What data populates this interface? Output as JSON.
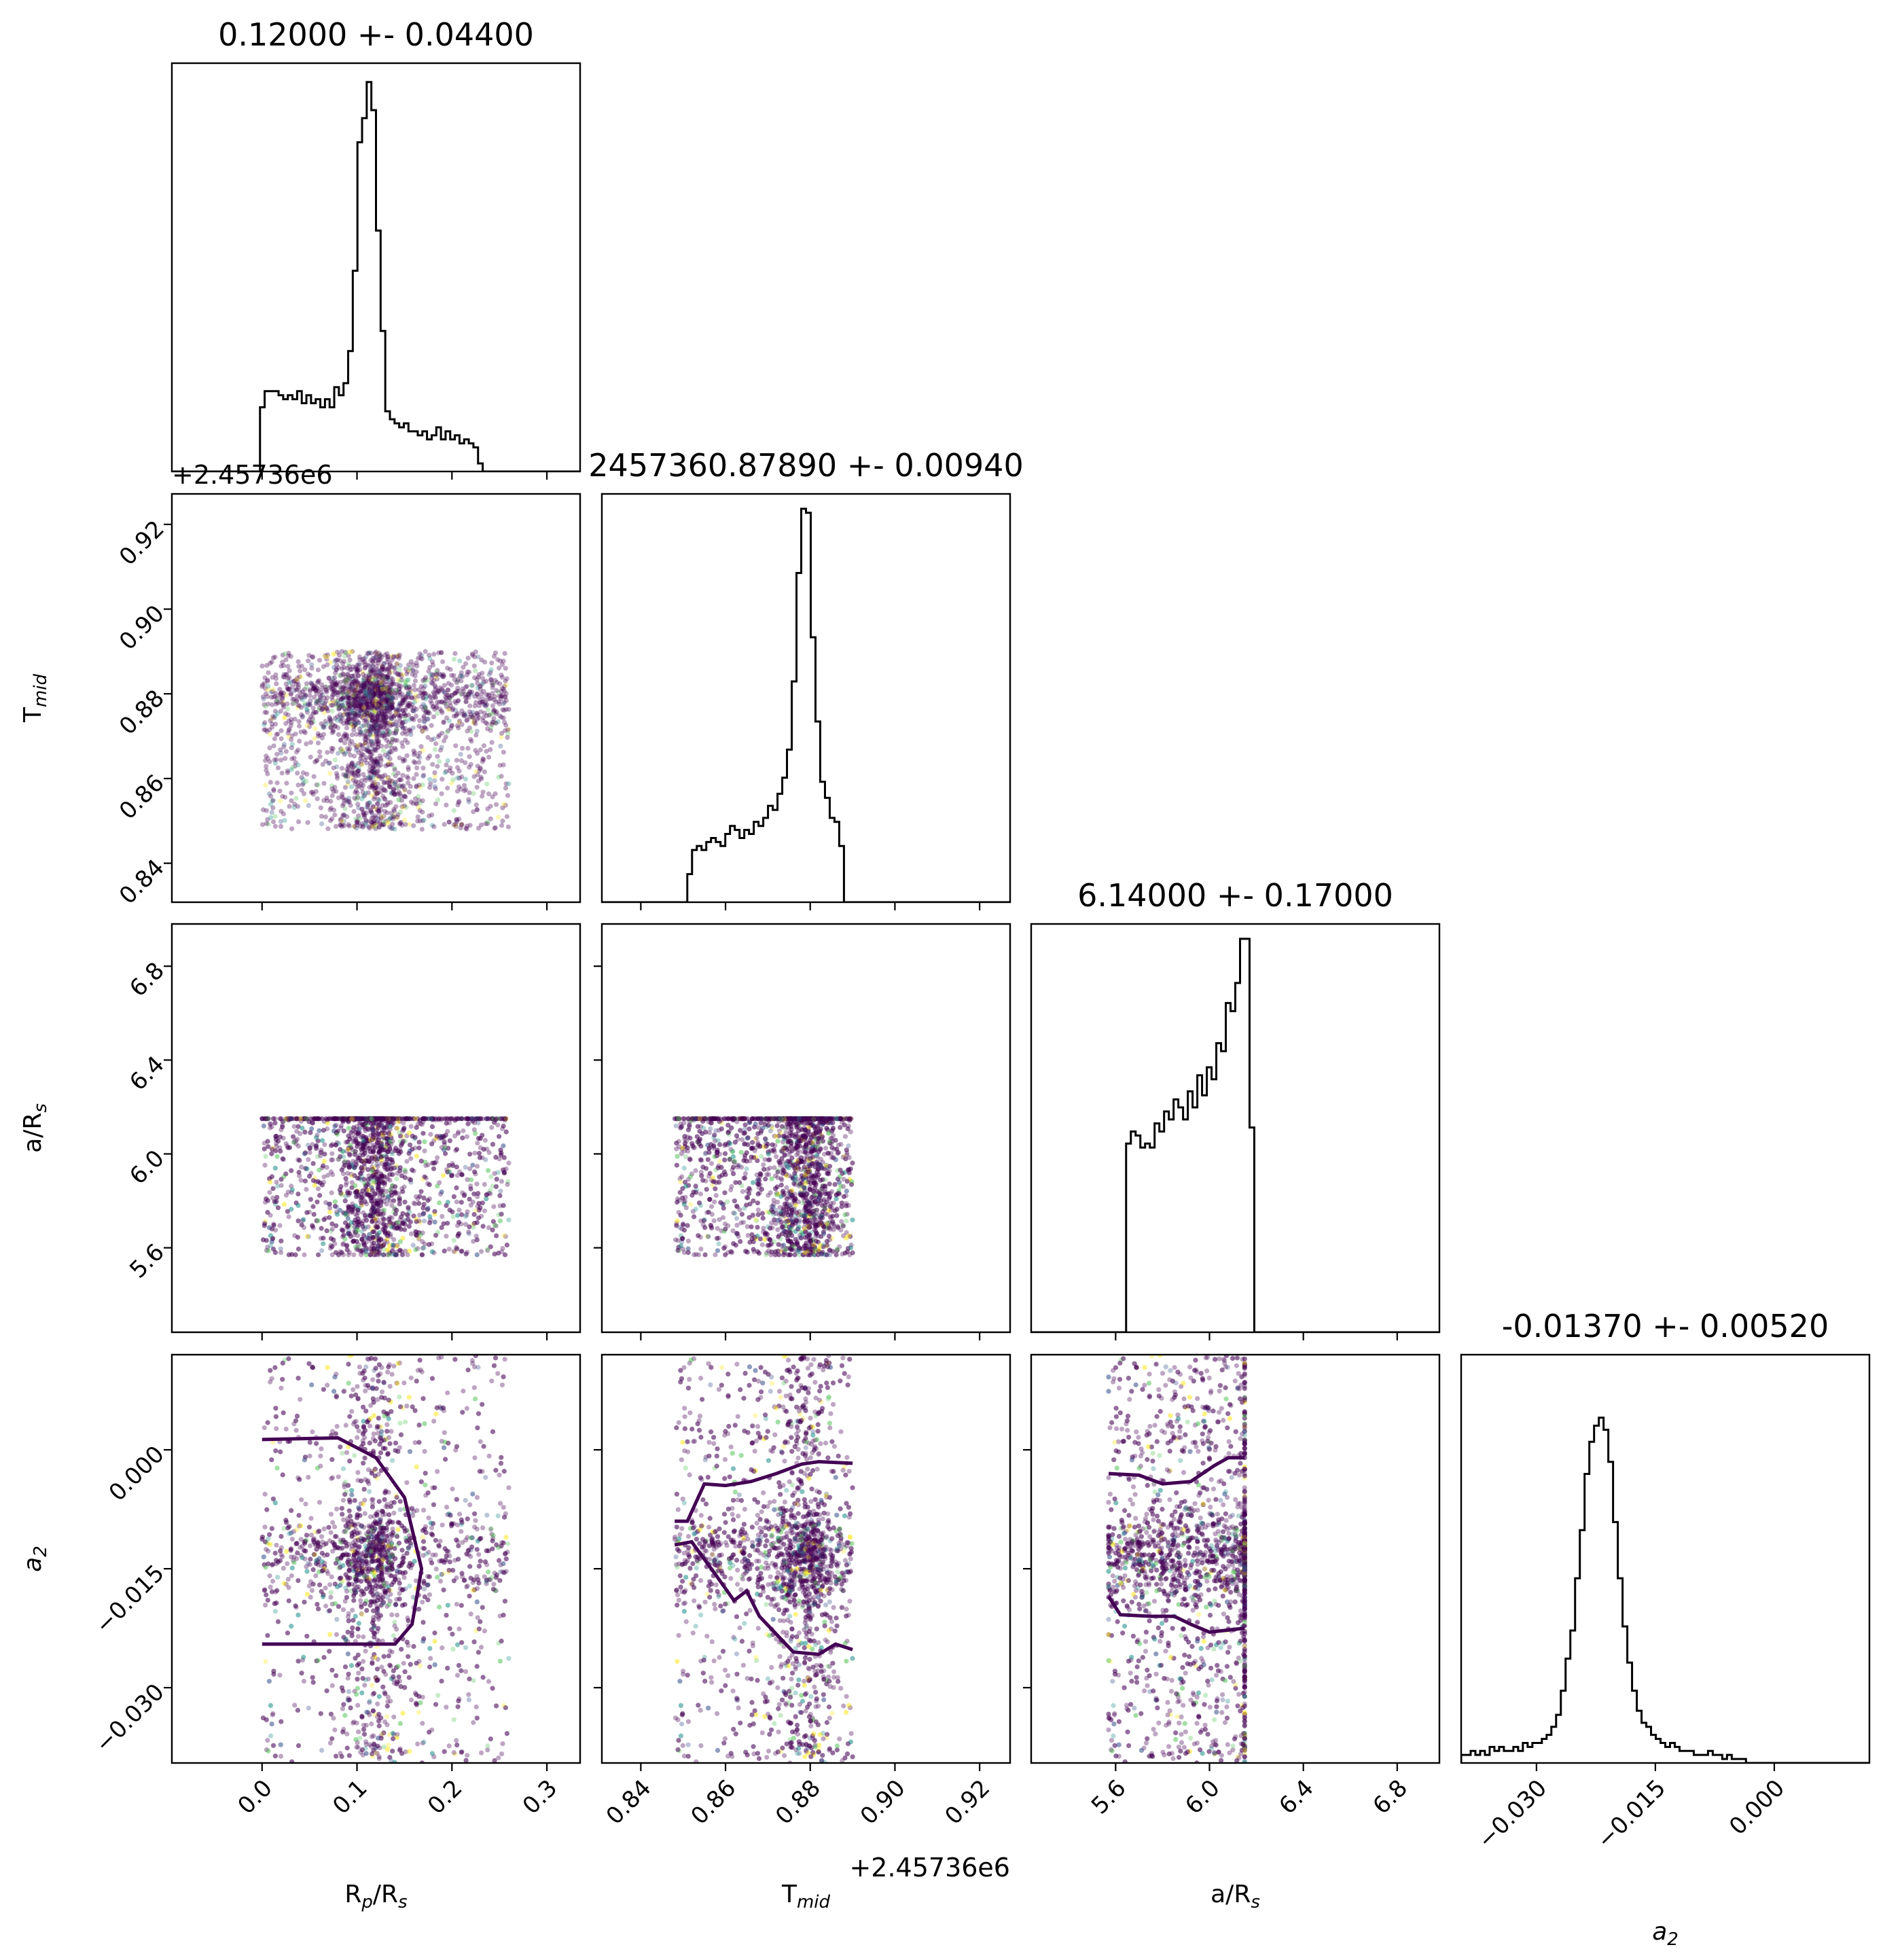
{
  "chart_data": {
    "type": "corner",
    "parameters": [
      {
        "key": "rp",
        "label": "R",
        "label_sub": "p",
        "label_rest": "/R",
        "label_rest_sub": "s",
        "title": "0.12000 +- 0.04400",
        "range": [
          -0.095,
          0.335
        ],
        "ticks": [
          "0.0",
          "0.1",
          "0.2",
          "0.3"
        ],
        "tick_values": [
          0.0,
          0.1,
          0.2,
          0.3
        ],
        "sample_range": [
          0.0,
          0.26
        ],
        "peak": 0.115,
        "width": 0.02
      },
      {
        "key": "tmid",
        "label": "T",
        "label_sub": "mid",
        "title": "2457360.87890 +- 0.00940",
        "range": [
          0.8308,
          0.9272
        ],
        "ticks": [
          "0.84",
          "0.86",
          "0.88",
          "0.90",
          "0.92"
        ],
        "tick_values": [
          0.84,
          0.86,
          0.88,
          0.9,
          0.92
        ],
        "offset_label": "+2.45736e6",
        "sample_range": [
          0.848,
          0.89
        ],
        "peak": 0.8785,
        "width": 0.004
      },
      {
        "key": "ars",
        "label": "a/R",
        "label_sub": "s",
        "title": "6.14000 +- 0.17000",
        "range": [
          5.24,
          6.98
        ],
        "ticks": [
          "5.6",
          "6.0",
          "6.4",
          "6.8"
        ],
        "tick_values": [
          5.6,
          6.0,
          6.4,
          6.8
        ],
        "sample_range": [
          5.57,
          6.15
        ],
        "peak": 6.1,
        "width": 0.3
      },
      {
        "key": "a2",
        "label": "a",
        "label_sub": "2",
        "title": "-0.01370 +- 0.00520",
        "range": [
          -0.0395,
          0.012
        ],
        "ticks": [
          "−0.030",
          "−0.015",
          "0.000"
        ],
        "tick_values": [
          -0.03,
          -0.015,
          0.0
        ],
        "sample_range": [
          -0.0395,
          0.012
        ],
        "peak": -0.0137,
        "width": 0.003
      }
    ],
    "histograms": {
      "rp": [
        0,
        0,
        0,
        0,
        0,
        0,
        0,
        0,
        0,
        0,
        0,
        0,
        0,
        0,
        0,
        0,
        0,
        0,
        0,
        0.16,
        0.2,
        0.2,
        0.2,
        0.19,
        0.18,
        0.19,
        0.18,
        0.2,
        0.17,
        0.19,
        0.17,
        0.18,
        0.16,
        0.18,
        0.16,
        0.21,
        0.19,
        0.22,
        0.3,
        0.5,
        0.82,
        0.88,
        0.97,
        0.9,
        0.6,
        0.35,
        0.15,
        0.13,
        0.12,
        0.11,
        0.12,
        0.1,
        0.1,
        0.09,
        0.1,
        0.08,
        0.09,
        0.11,
        0.08,
        0.1,
        0.08,
        0.09,
        0.07,
        0.08,
        0.07,
        0.06,
        0.02,
        0,
        0,
        0,
        0,
        0,
        0,
        0,
        0,
        0,
        0,
        0,
        0,
        0,
        0,
        0,
        0,
        0,
        0,
        0,
        0,
        0
      ],
      "tmid": [
        0,
        0,
        0,
        0,
        0,
        0,
        0,
        0,
        0,
        0,
        0,
        0,
        0,
        0,
        0,
        0,
        0,
        0,
        0.07,
        0.13,
        0.14,
        0.13,
        0.15,
        0.16,
        0.15,
        0.14,
        0.17,
        0.19,
        0.18,
        0.16,
        0.18,
        0.17,
        0.2,
        0.19,
        0.21,
        0.24,
        0.23,
        0.27,
        0.31,
        0.38,
        0.55,
        0.82,
        0.98,
        0.97,
        0.66,
        0.45,
        0.3,
        0.26,
        0.21,
        0.2,
        0.14,
        0,
        0,
        0,
        0,
        0,
        0,
        0,
        0,
        0,
        0,
        0,
        0,
        0,
        0,
        0,
        0,
        0,
        0,
        0,
        0,
        0,
        0,
        0,
        0,
        0,
        0,
        0,
        0,
        0,
        0,
        0,
        0,
        0,
        0,
        0
      ],
      "ars": [
        0,
        0,
        0,
        0,
        0,
        0,
        0,
        0,
        0,
        0,
        0,
        0,
        0,
        0,
        0,
        0,
        0,
        0,
        0,
        0,
        0.47,
        0.5,
        0.49,
        0.46,
        0.47,
        0.46,
        0.52,
        0.5,
        0.55,
        0.53,
        0.58,
        0.56,
        0.53,
        0.6,
        0.56,
        0.64,
        0.59,
        0.66,
        0.63,
        0.72,
        0.7,
        0.82,
        0.8,
        0.87,
        0.98,
        0.98,
        0.51,
        0,
        0,
        0,
        0,
        0,
        0,
        0,
        0,
        0,
        0,
        0,
        0,
        0,
        0,
        0,
        0,
        0,
        0,
        0,
        0,
        0,
        0,
        0,
        0,
        0,
        0,
        0,
        0,
        0,
        0,
        0,
        0,
        0,
        0,
        0,
        0,
        0,
        0,
        0
      ],
      "a2": [
        0.02,
        0.02,
        0.03,
        0.02,
        0.03,
        0.02,
        0.04,
        0.03,
        0.04,
        0.03,
        0.03,
        0.04,
        0.03,
        0.05,
        0.04,
        0.05,
        0.05,
        0.06,
        0.07,
        0.09,
        0.12,
        0.18,
        0.26,
        0.33,
        0.46,
        0.58,
        0.72,
        0.8,
        0.84,
        0.86,
        0.83,
        0.75,
        0.6,
        0.46,
        0.34,
        0.25,
        0.18,
        0.13,
        0.1,
        0.09,
        0.07,
        0.06,
        0.05,
        0.04,
        0.05,
        0.04,
        0.03,
        0.03,
        0.03,
        0.02,
        0.02,
        0.02,
        0.03,
        0.02,
        0.02,
        0.01,
        0.02,
        0.01,
        0.01,
        0.01,
        0,
        0,
        0,
        0,
        0,
        0,
        0,
        0,
        0,
        0,
        0,
        0,
        0,
        0,
        0,
        0,
        0,
        0,
        0,
        0,
        0,
        0,
        0,
        0,
        0,
        0
      ]
    },
    "contours": {
      "rp-a2": [
        [
          [
            0.0,
            0.0013
          ],
          [
            0.08,
            0.0015
          ],
          [
            0.12,
            -0.001
          ],
          [
            0.15,
            -0.006
          ],
          [
            0.168,
            -0.015
          ],
          [
            0.158,
            -0.022
          ],
          [
            0.14,
            -0.0245
          ],
          [
            0.1,
            -0.0245
          ],
          [
            0.0,
            -0.0245
          ]
        ]
      ],
      "tmid-a2": [
        [
          [
            0.848,
            -0.009
          ],
          [
            0.851,
            -0.009
          ],
          [
            0.855,
            -0.0043
          ],
          [
            0.86,
            -0.0045
          ],
          [
            0.866,
            -0.004
          ],
          [
            0.872,
            -0.003
          ],
          [
            0.878,
            -0.0018
          ],
          [
            0.882,
            -0.0015
          ],
          [
            0.89,
            -0.0017
          ]
        ],
        [
          [
            0.848,
            -0.012
          ],
          [
            0.852,
            -0.0116
          ],
          [
            0.858,
            -0.016
          ],
          [
            0.862,
            -0.019
          ],
          [
            0.865,
            -0.0178
          ],
          [
            0.868,
            -0.021
          ],
          [
            0.876,
            -0.0255
          ],
          [
            0.882,
            -0.0258
          ],
          [
            0.886,
            -0.0245
          ],
          [
            0.89,
            -0.0252
          ]
        ]
      ],
      "ars-a2": [
        [
          [
            5.57,
            -0.003
          ],
          [
            5.7,
            -0.0032
          ],
          [
            5.8,
            -0.0043
          ],
          [
            5.92,
            -0.004
          ],
          [
            6.02,
            -0.002
          ],
          [
            6.08,
            -0.001
          ],
          [
            6.15,
            -0.001
          ]
        ],
        [
          [
            5.57,
            -0.0185
          ],
          [
            5.62,
            -0.0208
          ],
          [
            5.75,
            -0.021
          ],
          [
            5.85,
            -0.021
          ],
          [
            5.92,
            -0.022
          ],
          [
            6.0,
            -0.023
          ],
          [
            6.15,
            -0.0225
          ]
        ]
      ]
    }
  }
}
